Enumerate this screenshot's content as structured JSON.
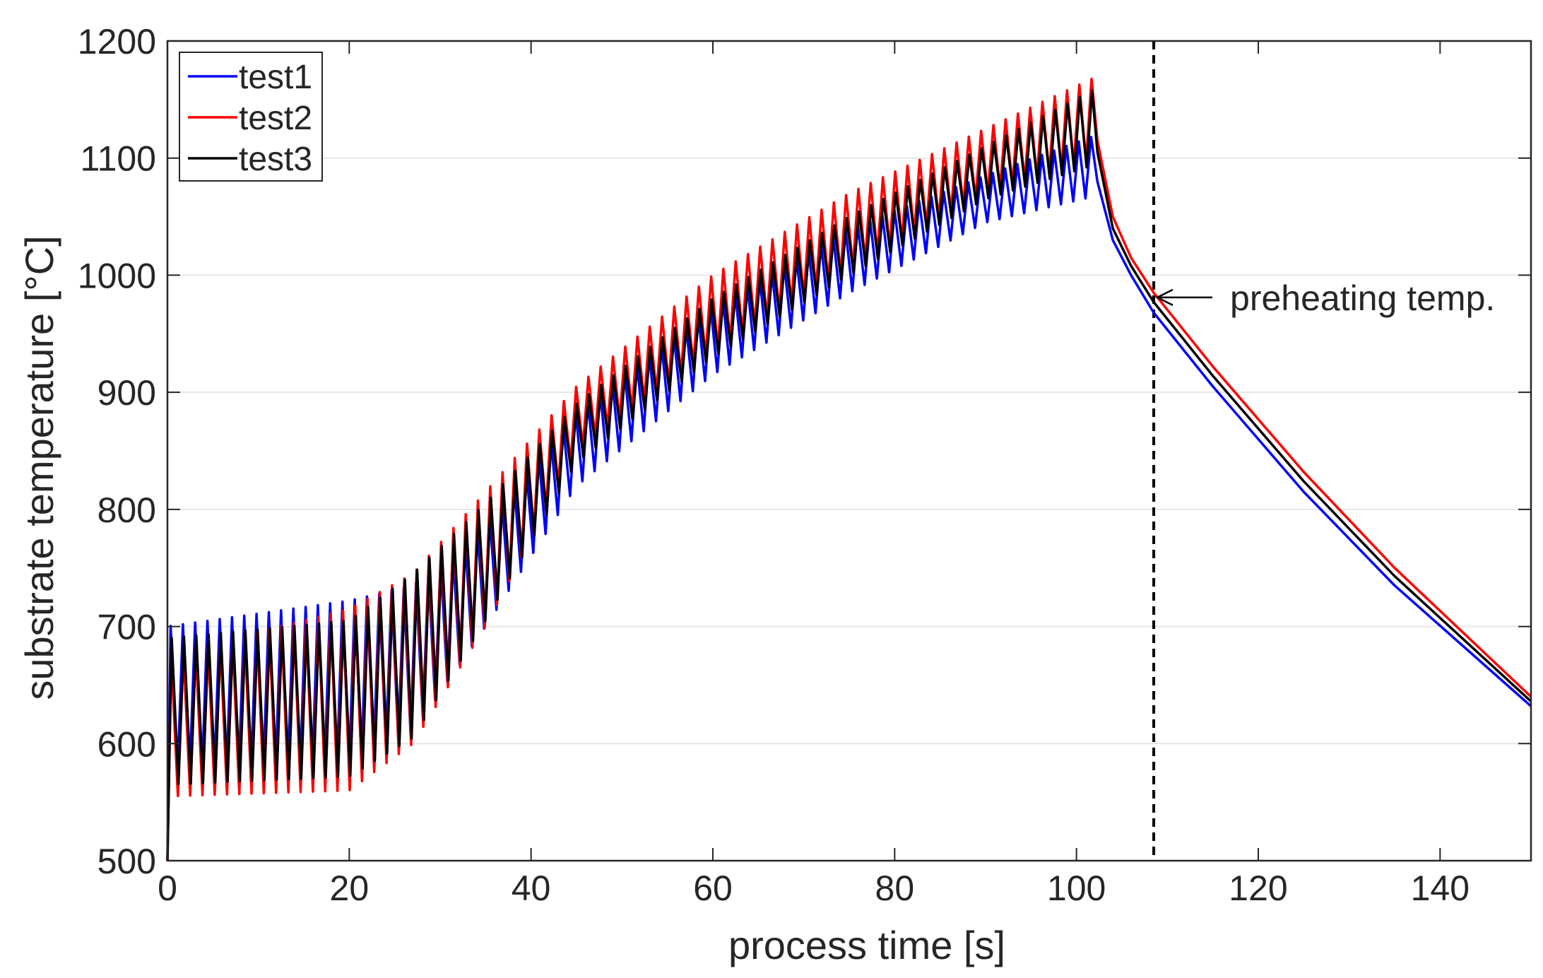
{
  "chart_data": {
    "type": "line",
    "title": "",
    "xlabel": "process time [s]",
    "ylabel": "substrate temperature [°C]",
    "xlim": [
      0,
      150
    ],
    "ylim": [
      500,
      1200
    ],
    "xticks": [
      0,
      20,
      40,
      60,
      80,
      100,
      120,
      140
    ],
    "yticks": [
      500,
      600,
      700,
      800,
      900,
      1000,
      1100,
      1200
    ],
    "grid": "horizontal",
    "legend_position": "top-left",
    "series": [
      {
        "name": "test1",
        "color": "#0000ff",
        "peak_env": [
          [
            0,
            700
          ],
          [
            20,
            722
          ],
          [
            27,
            735
          ],
          [
            35,
            790
          ],
          [
            45,
            885
          ],
          [
            60,
            975
          ],
          [
            75,
            1040
          ],
          [
            90,
            1085
          ],
          [
            102.3,
            1120
          ]
        ],
        "trough_env": [
          [
            0,
            570
          ],
          [
            20,
            580
          ],
          [
            27,
            610
          ],
          [
            35,
            700
          ],
          [
            45,
            820
          ],
          [
            60,
            915
          ],
          [
            75,
            985
          ],
          [
            90,
            1045
          ],
          [
            102.3,
            1068
          ]
        ],
        "cooling": [
          [
            102.3,
            1080
          ],
          [
            104,
            1030
          ],
          [
            106,
            1000
          ],
          [
            108.5,
            968
          ],
          [
            115,
            905
          ],
          [
            125,
            815
          ],
          [
            135,
            735
          ],
          [
            150,
            632
          ]
        ]
      },
      {
        "name": "test2",
        "color": "#ff0000",
        "peak_env": [
          [
            0,
            675
          ],
          [
            20,
            715
          ],
          [
            27,
            745
          ],
          [
            35,
            815
          ],
          [
            45,
            905
          ],
          [
            60,
            1000
          ],
          [
            75,
            1070
          ],
          [
            90,
            1125
          ],
          [
            102.3,
            1170
          ]
        ],
        "trough_env": [
          [
            0,
            555
          ],
          [
            20,
            560
          ],
          [
            27,
            600
          ],
          [
            35,
            700
          ],
          [
            45,
            850
          ],
          [
            60,
            935
          ],
          [
            75,
            1005
          ],
          [
            90,
            1070
          ],
          [
            102.3,
            1100
          ]
        ],
        "cooling": [
          [
            102.3,
            1115
          ],
          [
            104,
            1050
          ],
          [
            106,
            1015
          ],
          [
            108.5,
            985
          ],
          [
            115,
            922
          ],
          [
            125,
            832
          ],
          [
            135,
            750
          ],
          [
            150,
            640
          ]
        ]
      },
      {
        "name": "test3",
        "color": "#000000",
        "peak_env": [
          [
            0,
            690
          ],
          [
            20,
            705
          ],
          [
            27,
            745
          ],
          [
            35,
            805
          ],
          [
            45,
            890
          ],
          [
            60,
            980
          ],
          [
            75,
            1050
          ],
          [
            90,
            1110
          ],
          [
            102.3,
            1160
          ]
        ],
        "trough_env": [
          [
            0,
            565
          ],
          [
            20,
            572
          ],
          [
            27,
            605
          ],
          [
            35,
            705
          ],
          [
            45,
            840
          ],
          [
            60,
            930
          ],
          [
            75,
            1000
          ],
          [
            90,
            1065
          ],
          [
            102.3,
            1095
          ]
        ],
        "cooling": [
          [
            102.3,
            1105
          ],
          [
            104,
            1040
          ],
          [
            106,
            1008
          ],
          [
            108.5,
            977
          ],
          [
            115,
            914
          ],
          [
            125,
            824
          ],
          [
            135,
            743
          ],
          [
            150,
            636
          ]
        ]
      }
    ],
    "oscillation_period_s": 1.35,
    "annotations": [
      {
        "type": "vline",
        "x": 108.5,
        "style": "dashed",
        "color": "#000000"
      },
      {
        "type": "arrow_text",
        "text": "preheating temp.",
        "x": 108.5,
        "y": 978
      }
    ]
  }
}
